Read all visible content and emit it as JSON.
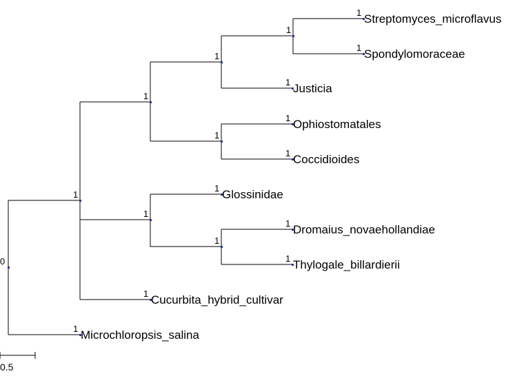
{
  "tree": {
    "root_label": "0",
    "nodes": [
      {
        "id": "root",
        "support": "0",
        "children": [
          "n1",
          "t_micro"
        ]
      },
      {
        "id": "n1",
        "support": "1",
        "children": [
          "n2",
          "n3",
          "t_cucu"
        ]
      },
      {
        "id": "n2",
        "support": "1",
        "children": [
          "n4",
          "n5"
        ]
      },
      {
        "id": "n4",
        "support": "1",
        "children": [
          "n6",
          "t_just"
        ]
      },
      {
        "id": "n6",
        "support": "1",
        "children": [
          "t_strep",
          "t_spond"
        ]
      },
      {
        "id": "n5",
        "support": "1",
        "children": [
          "t_ophi",
          "t_cocc"
        ]
      },
      {
        "id": "n3",
        "support": "1",
        "children": [
          "t_glos",
          "n7"
        ]
      },
      {
        "id": "n7",
        "support": "1",
        "children": [
          "t_drom",
          "t_thyl"
        ]
      }
    ],
    "leaves": [
      {
        "id": "t_strep",
        "support": "1",
        "label": "Streptomyces_microflavus"
      },
      {
        "id": "t_spond",
        "support": "1",
        "label": "Spondylomoraceae"
      },
      {
        "id": "t_just",
        "support": "1",
        "label": "Justicia"
      },
      {
        "id": "t_ophi",
        "support": "1",
        "label": "Ophiostomatales"
      },
      {
        "id": "t_cocc",
        "support": "1",
        "label": "Coccidioides"
      },
      {
        "id": "t_glos",
        "support": "1",
        "label": "Glossinidae"
      },
      {
        "id": "t_drom",
        "support": "1",
        "label": "Dromaius_novaehollandiae"
      },
      {
        "id": "t_thyl",
        "support": "1",
        "label": "Thylogale_billardierii"
      },
      {
        "id": "t_cucu",
        "support": "1",
        "label": "Cucurbita_hybrid_cultivar"
      },
      {
        "id": "t_micro",
        "support": "1",
        "label": "Microchloropsis_salina"
      }
    ]
  },
  "scale_bar": {
    "label": "0.5"
  },
  "colors": {
    "branch": "#000000",
    "node": "#1f3a9e",
    "text": "#000000"
  }
}
